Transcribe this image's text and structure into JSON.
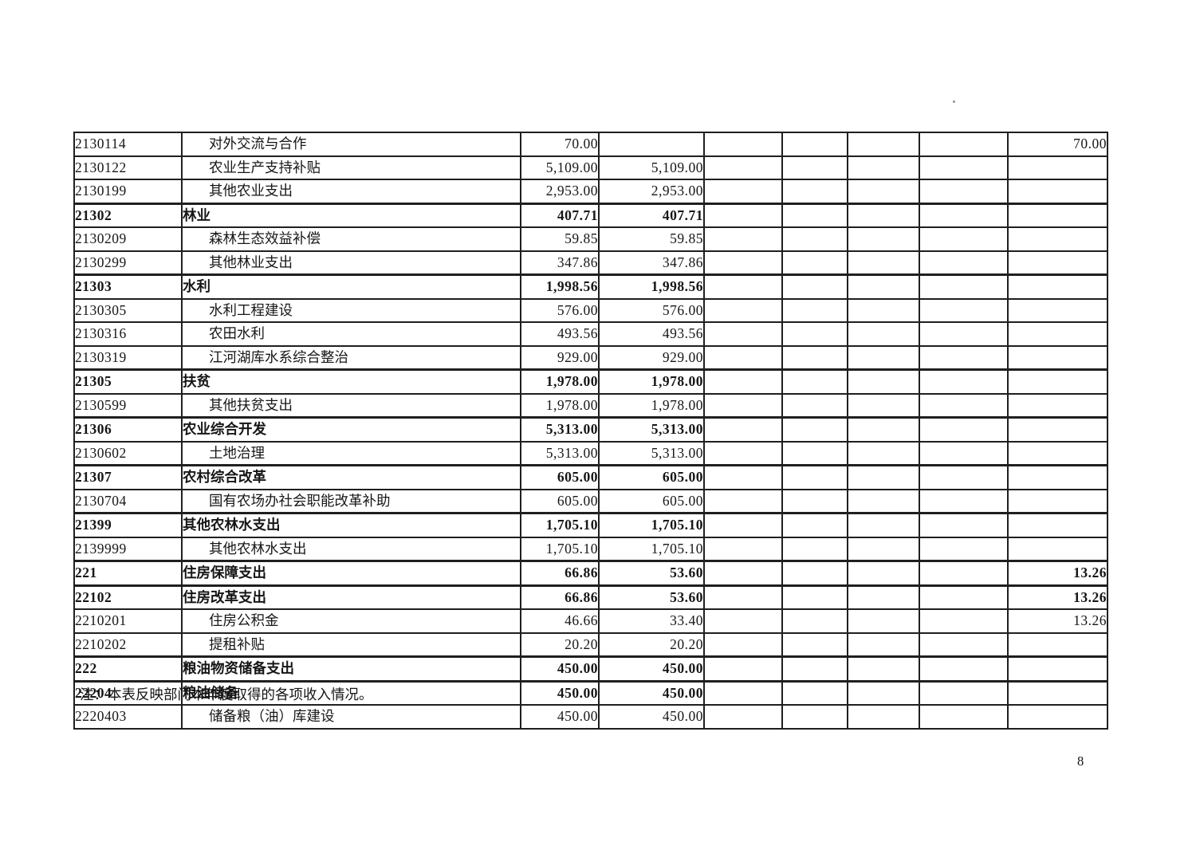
{
  "document": {
    "note": "注：本表反映部门本年度取得的各项收入情况。",
    "page_number": "8"
  },
  "table": {
    "rows": [
      {
        "code": "2130114",
        "name": "对外交流与合作",
        "bold": false,
        "values": [
          "70.00",
          "",
          "",
          "",
          "",
          "",
          "70.00"
        ]
      },
      {
        "code": "2130122",
        "name": "农业生产支持补贴",
        "bold": false,
        "values": [
          "5,109.00",
          "5,109.00",
          "",
          "",
          "",
          "",
          ""
        ]
      },
      {
        "code": "2130199",
        "name": "其他农业支出",
        "bold": false,
        "values": [
          "2,953.00",
          "2,953.00",
          "",
          "",
          "",
          "",
          ""
        ]
      },
      {
        "code": "21302",
        "name": "林业",
        "bold": true,
        "values": [
          "407.71",
          "407.71",
          "",
          "",
          "",
          "",
          ""
        ]
      },
      {
        "code": "2130209",
        "name": "森林生态效益补偿",
        "bold": false,
        "values": [
          "59.85",
          "59.85",
          "",
          "",
          "",
          "",
          ""
        ]
      },
      {
        "code": "2130299",
        "name": "其他林业支出",
        "bold": false,
        "values": [
          "347.86",
          "347.86",
          "",
          "",
          "",
          "",
          ""
        ]
      },
      {
        "code": "21303",
        "name": "水利",
        "bold": true,
        "values": [
          "1,998.56",
          "1,998.56",
          "",
          "",
          "",
          "",
          ""
        ]
      },
      {
        "code": "2130305",
        "name": "水利工程建设",
        "bold": false,
        "values": [
          "576.00",
          "576.00",
          "",
          "",
          "",
          "",
          ""
        ]
      },
      {
        "code": "2130316",
        "name": "农田水利",
        "bold": false,
        "values": [
          "493.56",
          "493.56",
          "",
          "",
          "",
          "",
          ""
        ]
      },
      {
        "code": "2130319",
        "name": "江河湖库水系综合整治",
        "bold": false,
        "values": [
          "929.00",
          "929.00",
          "",
          "",
          "",
          "",
          ""
        ]
      },
      {
        "code": "21305",
        "name": "扶贫",
        "bold": true,
        "values": [
          "1,978.00",
          "1,978.00",
          "",
          "",
          "",
          "",
          ""
        ]
      },
      {
        "code": "2130599",
        "name": "其他扶贫支出",
        "bold": false,
        "values": [
          "1,978.00",
          "1,978.00",
          "",
          "",
          "",
          "",
          ""
        ]
      },
      {
        "code": "21306",
        "name": "农业综合开发",
        "bold": true,
        "values": [
          "5,313.00",
          "5,313.00",
          "",
          "",
          "",
          "",
          ""
        ]
      },
      {
        "code": "2130602",
        "name": "土地治理",
        "bold": false,
        "values": [
          "5,313.00",
          "5,313.00",
          "",
          "",
          "",
          "",
          ""
        ]
      },
      {
        "code": "21307",
        "name": "农村综合改革",
        "bold": true,
        "values": [
          "605.00",
          "605.00",
          "",
          "",
          "",
          "",
          ""
        ]
      },
      {
        "code": "2130704",
        "name": "国有农场办社会职能改革补助",
        "bold": false,
        "values": [
          "605.00",
          "605.00",
          "",
          "",
          "",
          "",
          ""
        ]
      },
      {
        "code": "21399",
        "name": "其他农林水支出",
        "bold": true,
        "values": [
          "1,705.10",
          "1,705.10",
          "",
          "",
          "",
          "",
          ""
        ]
      },
      {
        "code": "2139999",
        "name": "其他农林水支出",
        "bold": false,
        "values": [
          "1,705.10",
          "1,705.10",
          "",
          "",
          "",
          "",
          ""
        ]
      },
      {
        "code": "221",
        "name": "住房保障支出",
        "bold": true,
        "values": [
          "66.86",
          "53.60",
          "",
          "",
          "",
          "",
          "13.26"
        ]
      },
      {
        "code": "22102",
        "name": "住房改革支出",
        "bold": true,
        "values": [
          "66.86",
          "53.60",
          "",
          "",
          "",
          "",
          "13.26"
        ]
      },
      {
        "code": "2210201",
        "name": "住房公积金",
        "bold": false,
        "values": [
          "46.66",
          "33.40",
          "",
          "",
          "",
          "",
          "13.26"
        ]
      },
      {
        "code": "2210202",
        "name": "提租补贴",
        "bold": false,
        "values": [
          "20.20",
          "20.20",
          "",
          "",
          "",
          "",
          ""
        ]
      },
      {
        "code": "222",
        "name": "粮油物资储备支出",
        "bold": true,
        "values": [
          "450.00",
          "450.00",
          "",
          "",
          "",
          "",
          ""
        ]
      },
      {
        "code": "22204",
        "name": "粮油储备",
        "bold": true,
        "values": [
          "450.00",
          "450.00",
          "",
          "",
          "",
          "",
          ""
        ]
      },
      {
        "code": "2220403",
        "name": "储备粮（油）库建设",
        "bold": false,
        "values": [
          "450.00",
          "450.00",
          "",
          "",
          "",
          "",
          ""
        ]
      }
    ]
  }
}
